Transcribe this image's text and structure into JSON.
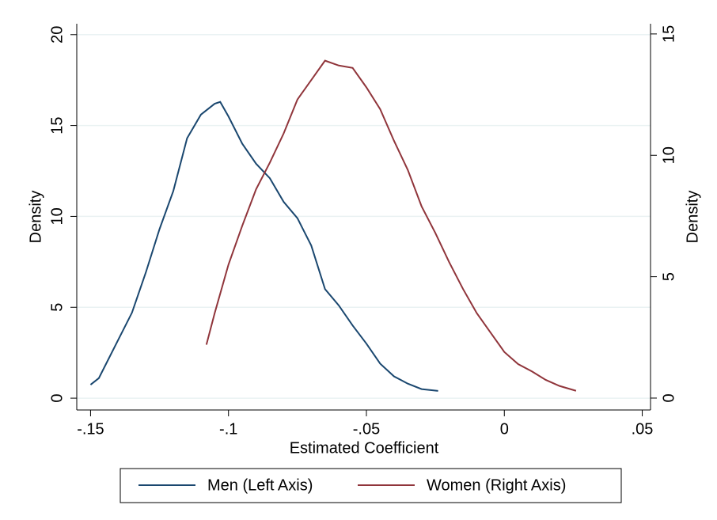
{
  "chart_data": {
    "type": "line",
    "x_label": "Estimated Coefficient",
    "y_label": "Density",
    "y2_label": "Density",
    "xlim": [
      -0.155,
      0.053
    ],
    "xticks": [
      {
        "value": -0.15,
        "label": "-.15"
      },
      {
        "value": -0.1,
        "label": "-.1"
      },
      {
        "value": -0.05,
        "label": "-.05"
      },
      0,
      {
        "value": 0.05,
        "label": ".05"
      }
    ],
    "ylim": [
      -0.65,
      20.6
    ],
    "yticks": [
      0,
      5,
      10,
      15,
      20
    ],
    "y2lim": [
      -0.49,
      15.42
    ],
    "y2ticks": [
      0,
      5,
      10,
      15
    ],
    "grid": true,
    "legend": "bottom",
    "series": [
      {
        "name": "Men (Left Axis)",
        "color": "#1a476f",
        "x": [
          -0.15,
          -0.147,
          -0.14,
          -0.135,
          -0.13,
          -0.125,
          -0.12,
          -0.115,
          -0.11,
          -0.105,
          -0.103,
          -0.1,
          -0.095,
          -0.09,
          -0.085,
          -0.08,
          -0.075,
          -0.07,
          -0.065,
          -0.06,
          -0.055,
          -0.05,
          -0.045,
          -0.04,
          -0.035,
          -0.03,
          -0.024
        ],
        "values": [
          0.74,
          1.1,
          3.2,
          4.7,
          6.9,
          9.3,
          11.4,
          14.3,
          15.6,
          16.2,
          16.3,
          15.5,
          14,
          12.9,
          12.1,
          10.8,
          9.9,
          8.4,
          6,
          5.1,
          4,
          3,
          1.9,
          1.2,
          0.8,
          0.5,
          0.4
        ]
      },
      {
        "name": "Women (Right Axis)",
        "color": "#90353b",
        "axis": "y2",
        "x": [
          -0.108,
          -0.105,
          -0.1,
          -0.095,
          -0.09,
          -0.085,
          -0.08,
          -0.075,
          -0.07,
          -0.065,
          -0.06,
          -0.055,
          -0.05,
          -0.045,
          -0.04,
          -0.035,
          -0.03,
          -0.025,
          -0.02,
          -0.015,
          -0.01,
          -0.005,
          0,
          0.005,
          0.01,
          0.015,
          0.02,
          0.026
        ],
        "values": [
          2.2,
          3.5,
          5.5,
          7.1,
          8.6,
          9.7,
          10.9,
          12.3,
          13.1,
          13.9,
          13.7,
          13.6,
          12.8,
          11.9,
          10.6,
          9.4,
          7.9,
          6.8,
          5.6,
          4.5,
          3.5,
          2.7,
          1.9,
          1.4,
          1.1,
          0.75,
          0.5,
          0.3
        ]
      }
    ]
  }
}
